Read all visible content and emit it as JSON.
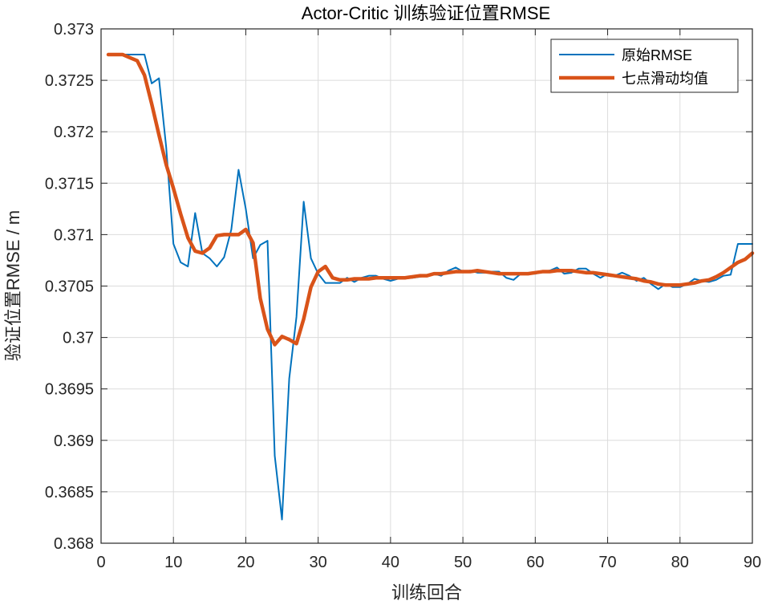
{
  "chart_data": {
    "type": "line",
    "title": "Actor-Critic 训练验证位置RMSE",
    "xlabel": "训练回合",
    "ylabel": "验证位置RMSE / m",
    "xlim": [
      0,
      90
    ],
    "ylim": [
      0.368,
      0.373
    ],
    "xticks": [
      "0",
      "10",
      "20",
      "30",
      "40",
      "50",
      "60",
      "70",
      "80",
      "90"
    ],
    "yticks": [
      "0.368",
      "0.3685",
      "0.369",
      "0.3695",
      "0.37",
      "0.3705",
      "0.371",
      "0.3715",
      "0.372",
      "0.3725",
      "0.373"
    ],
    "grid": true,
    "legend_position": "top-right",
    "colors": {
      "raw": "#0072BD",
      "smooth": "#D95319"
    },
    "x": [
      1,
      2,
      3,
      4,
      5,
      6,
      7,
      8,
      9,
      10,
      11,
      12,
      13,
      14,
      15,
      16,
      17,
      18,
      19,
      20,
      21,
      22,
      23,
      24,
      25,
      26,
      27,
      28,
      29,
      30,
      31,
      32,
      33,
      34,
      35,
      36,
      37,
      38,
      39,
      40,
      41,
      42,
      43,
      44,
      45,
      46,
      47,
      48,
      49,
      50,
      51,
      52,
      53,
      54,
      55,
      56,
      57,
      58,
      59,
      60,
      61,
      62,
      63,
      64,
      65,
      66,
      67,
      68,
      69,
      70,
      71,
      72,
      73,
      74,
      75,
      76,
      77,
      78,
      79,
      80,
      81,
      82,
      83,
      84,
      85,
      86,
      87,
      88,
      89,
      90
    ],
    "series": [
      {
        "name": "原始RMSE",
        "values": [
          0.37275,
          0.37275,
          0.37275,
          0.37275,
          0.37275,
          0.37275,
          0.37247,
          0.37252,
          0.37185,
          0.37091,
          0.37073,
          0.37069,
          0.37121,
          0.37082,
          0.37077,
          0.37069,
          0.37078,
          0.37105,
          0.37163,
          0.37125,
          0.37077,
          0.3709,
          0.37094,
          0.36885,
          0.36823,
          0.3696,
          0.3702,
          0.37132,
          0.37077,
          0.37062,
          0.37053,
          0.37053,
          0.37053,
          0.37058,
          0.37054,
          0.37058,
          0.3706,
          0.3706,
          0.37057,
          0.37055,
          0.37057,
          0.37058,
          0.37058,
          0.37059,
          0.3706,
          0.37062,
          0.3706,
          0.37065,
          0.37068,
          0.37064,
          0.37065,
          0.37063,
          0.37063,
          0.37064,
          0.37064,
          0.37058,
          0.37056,
          0.37062,
          0.37062,
          0.37062,
          0.37064,
          0.37065,
          0.37068,
          0.37062,
          0.37063,
          0.37067,
          0.37067,
          0.37062,
          0.37058,
          0.37062,
          0.3706,
          0.37063,
          0.3706,
          0.37055,
          0.37058,
          0.37052,
          0.37047,
          0.37052,
          0.37049,
          0.37049,
          0.37052,
          0.37057,
          0.37055,
          0.37054,
          0.37056,
          0.3706,
          0.37061,
          0.37091,
          0.37091,
          0.37091
        ]
      },
      {
        "name": "七点滑动均值",
        "values": [
          0.37275,
          0.37275,
          0.37275,
          0.37272,
          0.37269,
          0.37255,
          0.37227,
          0.37197,
          0.37168,
          0.37145,
          0.3712,
          0.37097,
          0.37084,
          0.37082,
          0.37087,
          0.37099,
          0.371,
          0.371,
          0.371,
          0.37105,
          0.37092,
          0.37038,
          0.37008,
          0.36993,
          0.37001,
          0.36998,
          0.36994,
          0.37018,
          0.37049,
          0.37064,
          0.37069,
          0.37058,
          0.37056,
          0.37056,
          0.37057,
          0.37057,
          0.37057,
          0.37058,
          0.37058,
          0.37058,
          0.37058,
          0.37058,
          0.37059,
          0.3706,
          0.3706,
          0.37062,
          0.37062,
          0.37063,
          0.37064,
          0.37064,
          0.37064,
          0.37065,
          0.37064,
          0.37063,
          0.37062,
          0.37062,
          0.37062,
          0.37062,
          0.37062,
          0.37063,
          0.37064,
          0.37064,
          0.37065,
          0.37065,
          0.37065,
          0.37064,
          0.37063,
          0.37063,
          0.37062,
          0.37061,
          0.3706,
          0.37059,
          0.37058,
          0.37057,
          0.37055,
          0.37054,
          0.37052,
          0.37051,
          0.37051,
          0.37051,
          0.37052,
          0.37053,
          0.37055,
          0.37056,
          0.37059,
          0.37063,
          0.37068,
          0.37073,
          0.37076,
          0.37082
        ]
      }
    ]
  }
}
